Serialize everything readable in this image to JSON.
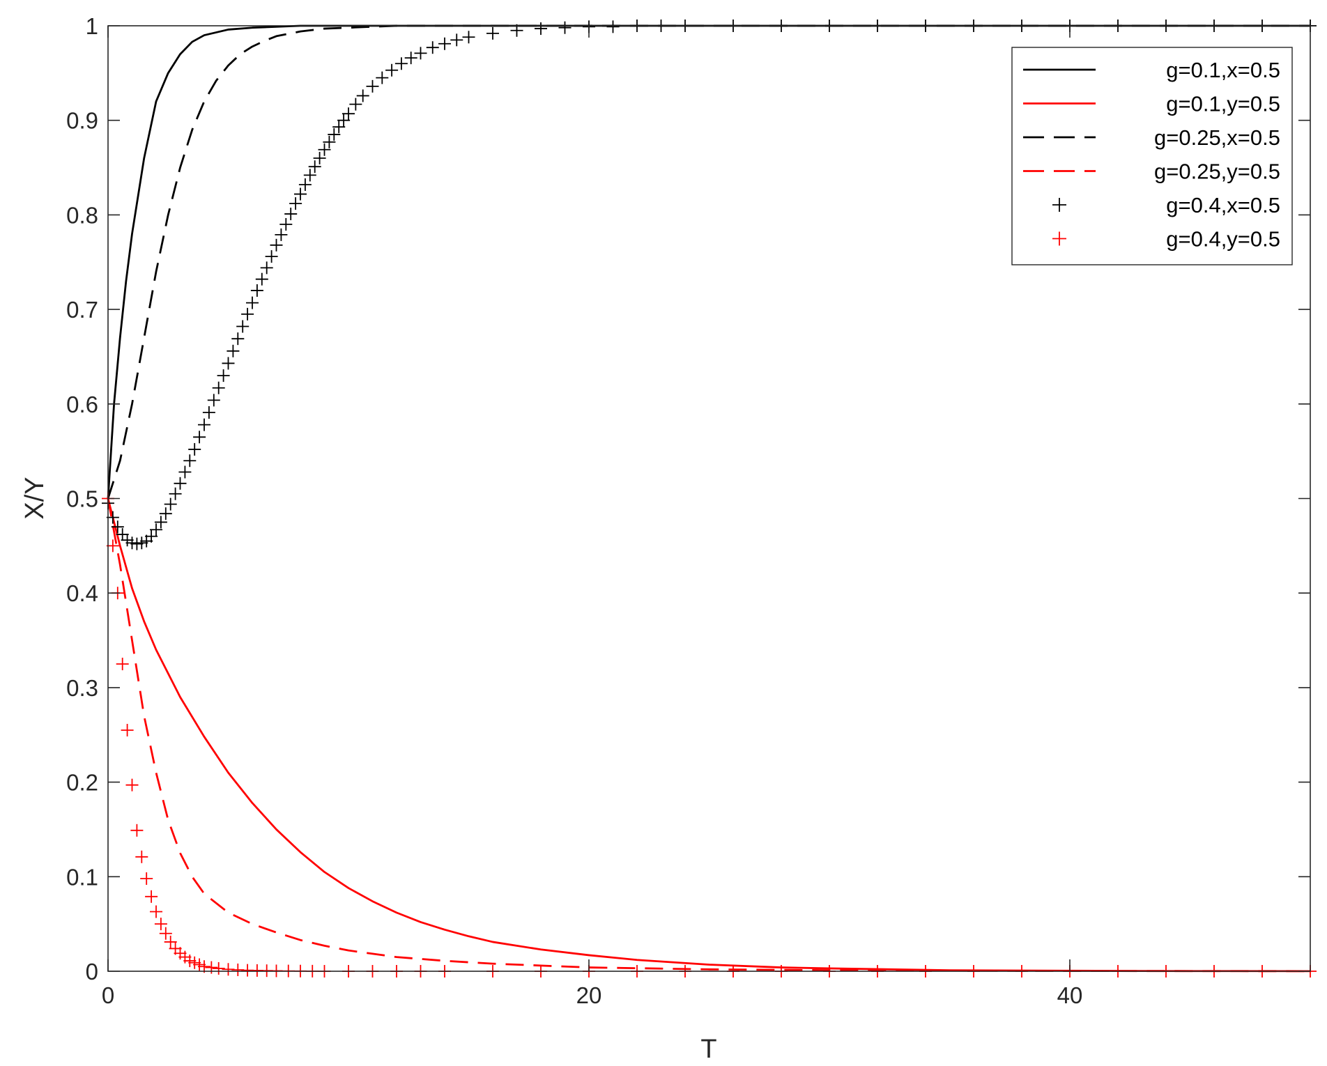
{
  "chart_data": {
    "type": "line",
    "title": "",
    "xlabel": "T",
    "ylabel": "X/Y",
    "xlim": [
      0,
      50
    ],
    "ylim": [
      0,
      1
    ],
    "xticks": [
      0,
      20,
      40
    ],
    "xtick_labels": [
      "0",
      "20",
      "40"
    ],
    "yticks": [
      0,
      0.1,
      0.2,
      0.3,
      0.4,
      0.5,
      0.6,
      0.7,
      0.8,
      0.9,
      1
    ],
    "ytick_labels": [
      "0",
      "0.1",
      "0.2",
      "0.3",
      "0.4",
      "0.5",
      "0.6",
      "0.7",
      "0.8",
      "0.9",
      "1"
    ],
    "grid": false,
    "legend_position": "top-right",
    "series": [
      {
        "name": "g=0.1,x=0.5",
        "color": "#000000",
        "style": "solid",
        "x": [
          0,
          0.25,
          0.5,
          0.75,
          1,
          1.5,
          2,
          2.5,
          3,
          3.5,
          4,
          5,
          6,
          7,
          8,
          10,
          12,
          15,
          20,
          30,
          40,
          50
        ],
        "y": [
          0.5,
          0.6,
          0.67,
          0.73,
          0.78,
          0.86,
          0.92,
          0.95,
          0.97,
          0.983,
          0.99,
          0.996,
          0.998,
          0.999,
          1,
          1,
          1,
          1,
          1,
          1,
          1,
          1
        ]
      },
      {
        "name": "g=0.1,y=0.5",
        "color": "#ff0000",
        "style": "solid",
        "x": [
          0,
          0.25,
          0.5,
          1,
          1.5,
          2,
          3,
          4,
          5,
          6,
          7,
          8,
          9,
          10,
          11,
          12,
          13,
          14,
          15,
          16,
          18,
          20,
          22,
          25,
          28,
          30,
          35,
          40,
          45,
          50
        ],
        "y": [
          0.5,
          0.475,
          0.45,
          0.405,
          0.37,
          0.34,
          0.29,
          0.248,
          0.21,
          0.178,
          0.15,
          0.126,
          0.105,
          0.088,
          0.074,
          0.062,
          0.052,
          0.044,
          0.037,
          0.031,
          0.023,
          0.017,
          0.012,
          0.007,
          0.004,
          0.003,
          0.001,
          0.0005,
          0.0002,
          0.0001
        ]
      },
      {
        "name": "g=0.25,x=0.5",
        "color": "#000000",
        "style": "dashed",
        "x": [
          0,
          0.5,
          1,
          1.5,
          2,
          2.5,
          3,
          3.5,
          4,
          4.5,
          5,
          5.5,
          6,
          6.5,
          7,
          8,
          9,
          10,
          11,
          12,
          14,
          16,
          20,
          30,
          40,
          50
        ],
        "y": [
          0.5,
          0.54,
          0.6,
          0.67,
          0.74,
          0.8,
          0.85,
          0.89,
          0.92,
          0.942,
          0.958,
          0.97,
          0.978,
          0.984,
          0.989,
          0.994,
          0.997,
          0.998,
          0.999,
          1,
          1,
          1,
          1,
          1,
          1,
          1
        ]
      },
      {
        "name": "g=0.25,y=0.5",
        "color": "#ff0000",
        "style": "dashed",
        "x": [
          0,
          0.5,
          1,
          1.5,
          2,
          2.5,
          3,
          3.5,
          4,
          5,
          6,
          7,
          8,
          9,
          10,
          12,
          14,
          16,
          18,
          20,
          25,
          30,
          40,
          50
        ],
        "y": [
          0.5,
          0.43,
          0.35,
          0.27,
          0.21,
          0.16,
          0.125,
          0.1,
          0.082,
          0.062,
          0.05,
          0.041,
          0.033,
          0.027,
          0.022,
          0.015,
          0.011,
          0.008,
          0.006,
          0.004,
          0.002,
          0.001,
          0.0003,
          0.0001
        ]
      },
      {
        "name": "g=0.4,x=0.5",
        "color": "#000000",
        "style": "plus",
        "x": [
          0,
          0.2,
          0.4,
          0.6,
          0.8,
          1,
          1.2,
          1.4,
          1.6,
          1.8,
          2,
          2.2,
          2.4,
          2.6,
          2.8,
          3,
          3.2,
          3.4,
          3.6,
          3.8,
          4,
          4.2,
          4.4,
          4.6,
          4.8,
          5,
          5.2,
          5.4,
          5.6,
          5.8,
          6,
          6.2,
          6.4,
          6.6,
          6.8,
          7,
          7.2,
          7.4,
          7.6,
          7.8,
          8,
          8.2,
          8.4,
          8.6,
          8.8,
          9,
          9.2,
          9.4,
          9.6,
          9.8,
          10,
          10.3,
          10.6,
          11,
          11.4,
          11.8,
          12.2,
          12.6,
          13,
          13.5,
          14,
          14.5,
          15,
          16,
          17,
          18,
          19,
          20,
          21,
          22,
          23,
          24,
          26,
          28,
          30,
          32,
          34,
          36,
          38,
          40,
          42,
          44,
          46,
          48,
          50
        ],
        "y": [
          0.495,
          0.48,
          0.47,
          0.462,
          0.456,
          0.453,
          0.452,
          0.453,
          0.455,
          0.46,
          0.467,
          0.475,
          0.484,
          0.494,
          0.505,
          0.516,
          0.528,
          0.54,
          0.552,
          0.565,
          0.578,
          0.591,
          0.604,
          0.617,
          0.63,
          0.643,
          0.656,
          0.669,
          0.682,
          0.695,
          0.707,
          0.72,
          0.732,
          0.744,
          0.756,
          0.768,
          0.779,
          0.79,
          0.801,
          0.812,
          0.822,
          0.832,
          0.842,
          0.851,
          0.86,
          0.869,
          0.877,
          0.885,
          0.893,
          0.9,
          0.907,
          0.917,
          0.926,
          0.936,
          0.945,
          0.953,
          0.96,
          0.966,
          0.971,
          0.977,
          0.981,
          0.985,
          0.988,
          0.992,
          0.995,
          0.997,
          0.998,
          0.999,
          0.999,
          1,
          1,
          1,
          1,
          1,
          1,
          1,
          1,
          1,
          1,
          1,
          1,
          1,
          1,
          1,
          1
        ]
      },
      {
        "name": "g=0.4,y=0.5",
        "color": "#ff0000",
        "style": "plus",
        "x": [
          0,
          0.2,
          0.4,
          0.6,
          0.8,
          1,
          1.2,
          1.4,
          1.6,
          1.8,
          2,
          2.2,
          2.4,
          2.6,
          2.8,
          3,
          3.2,
          3.4,
          3.6,
          3.8,
          4,
          4.3,
          4.6,
          5,
          5.4,
          5.8,
          6.2,
          6.6,
          7,
          7.5,
          8,
          8.5,
          9,
          10,
          11,
          12,
          13,
          14,
          16,
          18,
          20,
          22,
          24,
          26,
          28,
          30,
          32,
          34,
          36,
          38,
          40,
          42,
          44,
          46,
          48,
          50
        ],
        "y": [
          0.5,
          0.45,
          0.4,
          0.325,
          0.255,
          0.197,
          0.149,
          0.121,
          0.098,
          0.079,
          0.063,
          0.05,
          0.04,
          0.031,
          0.024,
          0.019,
          0.015,
          0.011,
          0.009,
          0.007,
          0.005,
          0.004,
          0.003,
          0.002,
          0.0015,
          0.001,
          0.0008,
          0.0006,
          0.0004,
          0.0003,
          0.0002,
          0.0001,
          0,
          0,
          0,
          0,
          0,
          0,
          0,
          0,
          0,
          0,
          0,
          0,
          0,
          0,
          0,
          0,
          0,
          0,
          0,
          0,
          0,
          0,
          0,
          0
        ]
      }
    ]
  }
}
